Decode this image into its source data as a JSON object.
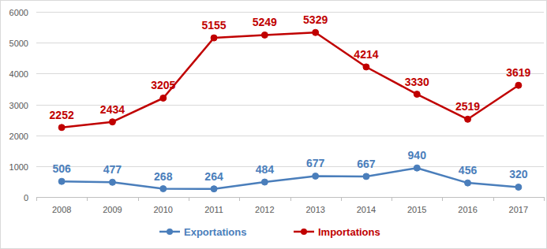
{
  "chart_data": {
    "type": "line",
    "categories": [
      "2008",
      "2009",
      "2010",
      "2011",
      "2012",
      "2013",
      "2014",
      "2015",
      "2016",
      "2017"
    ],
    "series": [
      {
        "name": "Exportations",
        "color": "#4a7ebb",
        "marker": "circle",
        "values": [
          506,
          477,
          268,
          264,
          484,
          677,
          667,
          940,
          456,
          320
        ]
      },
      {
        "name": "Importations",
        "color": "#c00000",
        "marker": "circle",
        "values": [
          2252,
          2434,
          3205,
          5155,
          5249,
          5329,
          4214,
          3330,
          2519,
          3619
        ]
      }
    ],
    "ylim": [
      0,
      6000
    ],
    "yticks": [
      0,
      1000,
      2000,
      3000,
      4000,
      5000,
      6000
    ],
    "grid": true,
    "legend": "bottom",
    "data_labels": true
  }
}
